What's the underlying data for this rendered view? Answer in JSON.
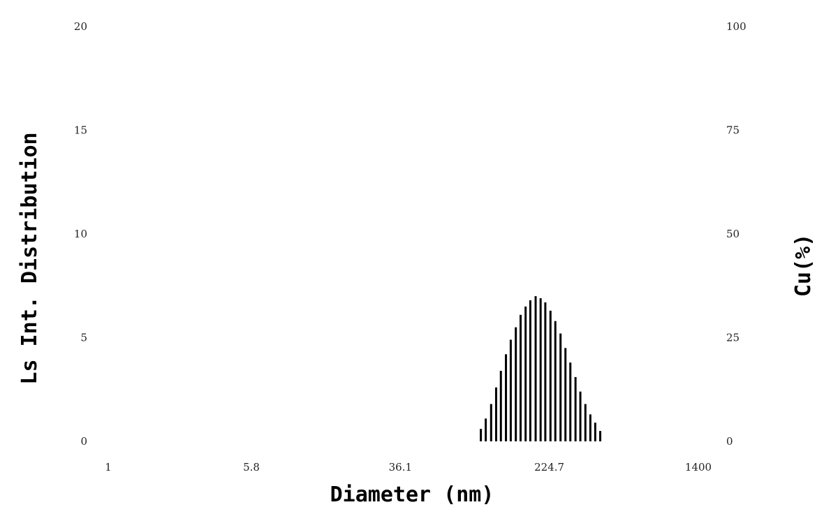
{
  "chart_data": {
    "type": "bar",
    "xlabel": "Diameter (nm)",
    "ylabel": "Ls Int. Distribution",
    "y2label": "Cu(%)",
    "x_scale": "log",
    "x_ticks": [
      "1",
      "5.8",
      "36.1",
      "224.7",
      "1400"
    ],
    "xlim": [
      1,
      1400
    ],
    "y_ticks": [
      "0",
      "5",
      "10",
      "15",
      "20"
    ],
    "ylim": [
      0,
      20
    ],
    "y2_ticks": [
      "0",
      "25",
      "50",
      "75",
      "100"
    ],
    "y2lim": [
      0,
      100
    ],
    "grid": false,
    "series": [
      {
        "x": [
          97,
          103,
          110,
          117,
          124,
          132,
          140,
          149,
          158,
          168,
          178,
          190,
          202,
          214,
          228,
          242,
          258,
          274,
          291,
          310,
          329,
          350,
          372,
          395,
          420
        ],
        "values": [
          0.6,
          1.1,
          1.8,
          2.6,
          3.4,
          4.2,
          4.9,
          5.5,
          6.1,
          6.5,
          6.8,
          7.0,
          6.9,
          6.7,
          6.3,
          5.8,
          5.2,
          4.5,
          3.8,
          3.1,
          2.4,
          1.8,
          1.3,
          0.9,
          0.5
        ]
      }
    ],
    "colors": {
      "bars": "#000000"
    }
  }
}
